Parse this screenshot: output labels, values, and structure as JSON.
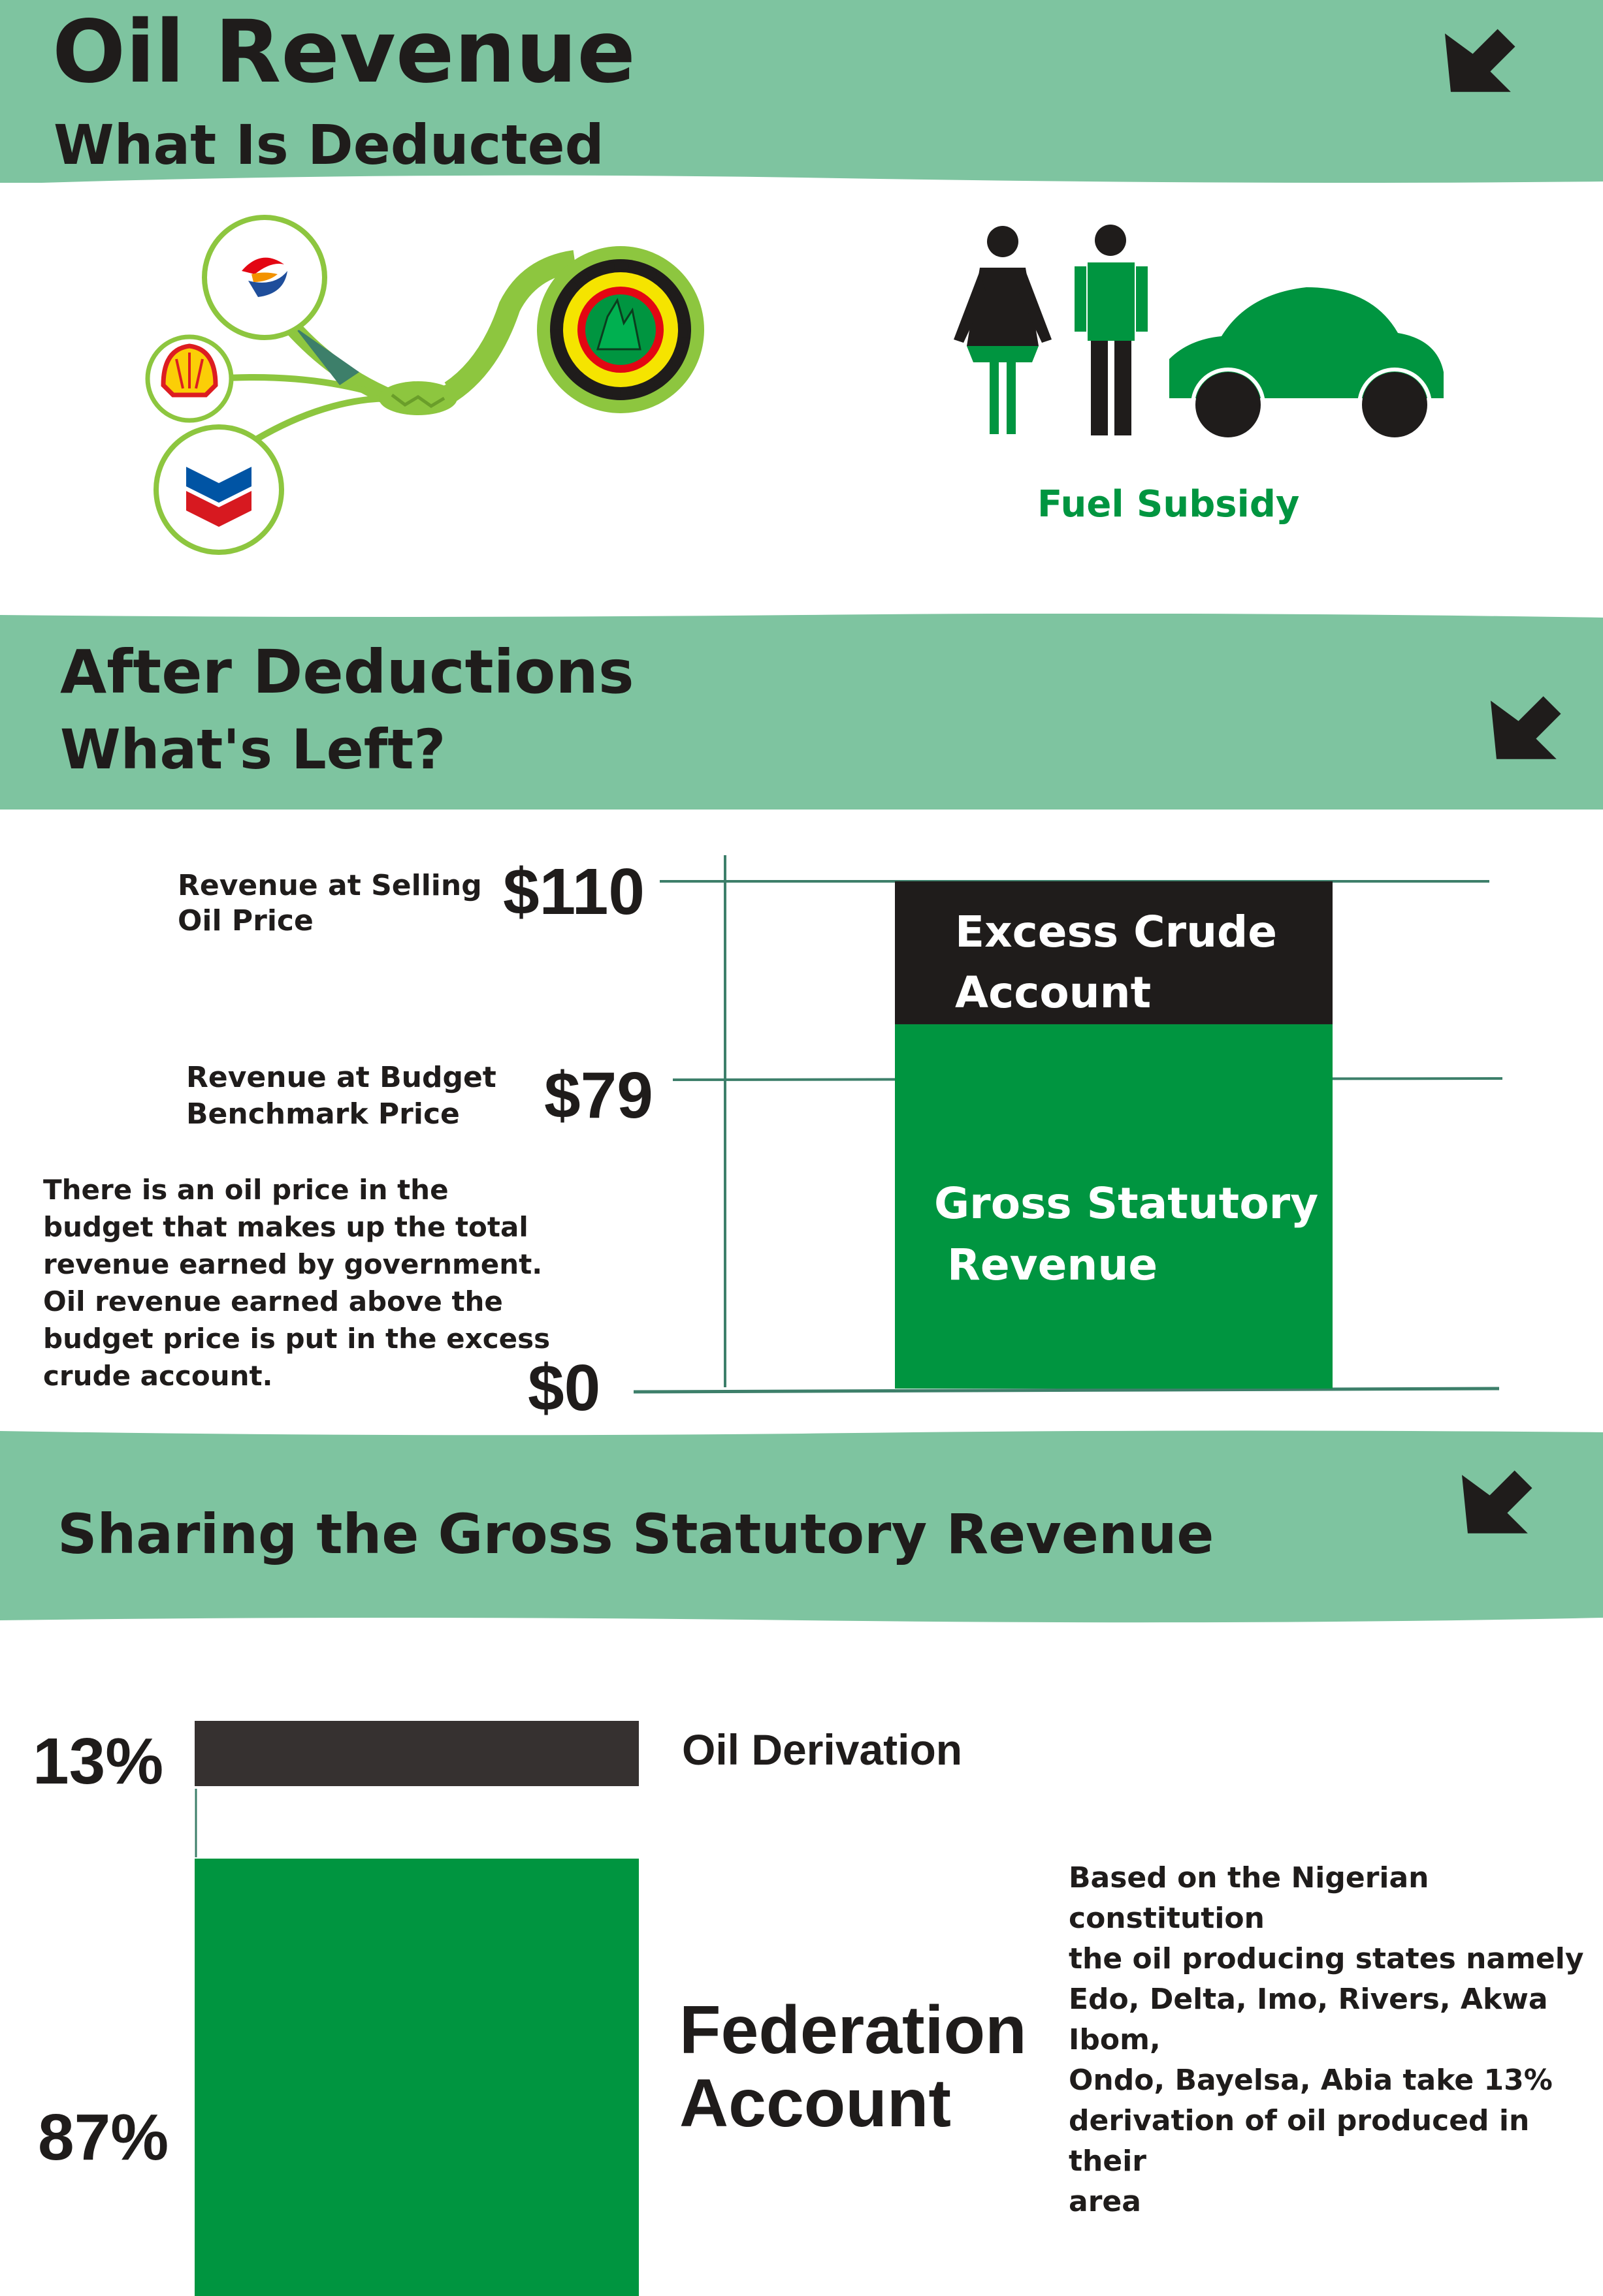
{
  "section1": {
    "title": "Oil Revenue",
    "subtitle": "What Is Deducted",
    "fuel_subsidy_label": "Fuel Subsidy",
    "icons": [
      "total-logo-icon",
      "shell-logo-icon",
      "chevron-logo-icon",
      "nnpc-logo-icon",
      "handshake-icon",
      "woman-icon",
      "man-icon",
      "car-icon"
    ]
  },
  "section2": {
    "title": "After Deductions",
    "subtitle": "What's Left?",
    "selling_label_line1": "Revenue at Selling",
    "selling_label_line2": "Oil Price",
    "budget_label_line1": "Revenue at Budget",
    "budget_label_line2": "Benchmark Price",
    "explanation": [
      "There is an oil price in the",
      "budget that makes up the total",
      "revenue earned by government.",
      "Oil revenue earned  above the",
      "budget  price is put in the excess",
      "crude account."
    ],
    "excess_line1": "Excess Crude",
    "excess_line2": "Account",
    "gross_line1": "Gross Statutory",
    "gross_line2": "Revenue"
  },
  "chart_data": [
    {
      "type": "bar",
      "title": "",
      "y_ticks": [
        "$0",
        "$79",
        "$110"
      ],
      "ylim": [
        0,
        110
      ],
      "segments": [
        {
          "name": "Gross Statutory Revenue",
          "from": 0,
          "to": 79,
          "color": "#009540"
        },
        {
          "name": "Excess Crude Account",
          "from": 79,
          "to": 110,
          "color": "#1f1c1b"
        }
      ]
    },
    {
      "type": "bar",
      "title": "",
      "segments": [
        {
          "name": "Oil Derivation",
          "value": 13,
          "label": "13%",
          "color": "#363130"
        },
        {
          "name": "Federation Account",
          "value": 87,
          "label": "87%",
          "color": "#009540"
        }
      ]
    }
  ],
  "section3": {
    "title": "Sharing the Gross Statutory Revenue",
    "oil_derivation_label": "Oil Derivation",
    "federation_line1": "Federation",
    "federation_line2": "Account",
    "pct_13": "13%",
    "pct_87": "87%",
    "constitution_note": [
      "Based on  the Nigerian constitution",
      "the oil producing states namely",
      "Edo, Delta, Imo, Rivers, Akwa Ibom,",
      "Ondo, Bayelsa, Abia take 13%",
      "derivation of oil produced in their",
      "area"
    ]
  },
  "colors": {
    "band": "#7ec4a0",
    "green": "#009540",
    "dark": "#1f1c1b",
    "light_green": "#8dc63f",
    "line": "#3d7f6a"
  }
}
